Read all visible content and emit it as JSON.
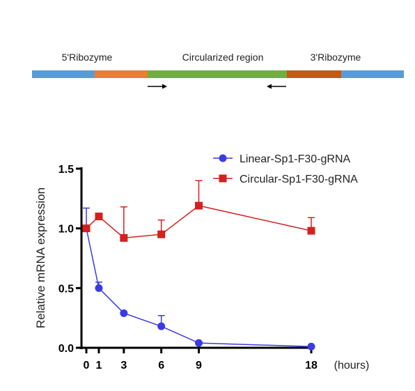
{
  "construct": {
    "labels": {
      "five_ribozyme": "5'Ribozyme",
      "circularized_region": "Circularized region",
      "three_ribozyme": "3'Ribozyme"
    },
    "segment_colors": {
      "flank": "#5B9BD5",
      "ribozyme_5": "#ED7D31",
      "circular": "#70AD47",
      "ribozyme_3": "#C55A11"
    },
    "primer_arrows": [
      "forward-arrow",
      "reverse-arrow"
    ]
  },
  "chart_data": {
    "type": "line",
    "title": "",
    "xlabel": "(hours)",
    "ylabel": "Relative mRNA expression",
    "x": [
      0,
      1,
      3,
      6,
      9,
      18
    ],
    "x_tick_labels": [
      "0",
      "1",
      "3",
      "6",
      "9",
      "18"
    ],
    "xlim": [
      0,
      19
    ],
    "ylim": [
      0,
      1.5
    ],
    "y_ticks": [
      0,
      0.5,
      1.0,
      1.5
    ],
    "y_tick_labels": [
      "0.0",
      "0.5",
      "1.0",
      "1.5"
    ],
    "grid": false,
    "legend_position": "top-right",
    "series": [
      {
        "name": "Linear-Sp1-F30-gRNA",
        "color": "#3B3BE0",
        "marker": "circle",
        "values": [
          1.0,
          0.5,
          0.29,
          0.18,
          0.04,
          0.01
        ],
        "error": [
          0.17,
          0.05,
          0.0,
          0.09,
          0.0,
          0.0
        ]
      },
      {
        "name": "Circular-Sp1-F30-gRNA",
        "color": "#D42020",
        "marker": "square",
        "values": [
          1.0,
          1.1,
          0.92,
          0.95,
          1.19,
          0.98
        ],
        "error": [
          0.0,
          0.0,
          0.26,
          0.12,
          0.21,
          0.11
        ]
      }
    ]
  }
}
